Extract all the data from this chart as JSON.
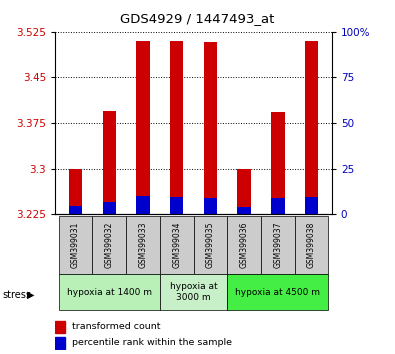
{
  "title": "GDS4929 / 1447493_at",
  "samples": [
    "GSM399031",
    "GSM399032",
    "GSM399033",
    "GSM399034",
    "GSM399035",
    "GSM399036",
    "GSM399037",
    "GSM399038"
  ],
  "red_values": [
    3.3,
    3.395,
    3.51,
    3.51,
    3.508,
    3.3,
    3.393,
    3.51
  ],
  "blue_values": [
    3.238,
    3.245,
    3.255,
    3.253,
    3.252,
    3.237,
    3.252,
    3.253
  ],
  "base_value": 3.225,
  "ylim_min": 3.225,
  "ylim_max": 3.525,
  "yticks_left": [
    3.225,
    3.3,
    3.375,
    3.45,
    3.525
  ],
  "yticks_right": [
    0,
    25,
    50,
    75,
    100
  ],
  "yticks_right_labels": [
    "0",
    "25",
    "50",
    "75",
    "100%"
  ],
  "groups": [
    {
      "label": "hypoxia at 1400 m",
      "start": 0,
      "end": 3,
      "color": "#b8f0b8"
    },
    {
      "label": "hypoxia at\n3000 m",
      "start": 3,
      "end": 5,
      "color": "#c8f0c8"
    },
    {
      "label": "hypoxia at 4500 m",
      "start": 5,
      "end": 8,
      "color": "#44ee44"
    }
  ],
  "bar_color_red": "#cc0000",
  "bar_color_blue": "#0000cc",
  "bar_width": 0.4,
  "ylabel_left_color": "#cc0000",
  "ylabel_right_color": "#0000bb"
}
